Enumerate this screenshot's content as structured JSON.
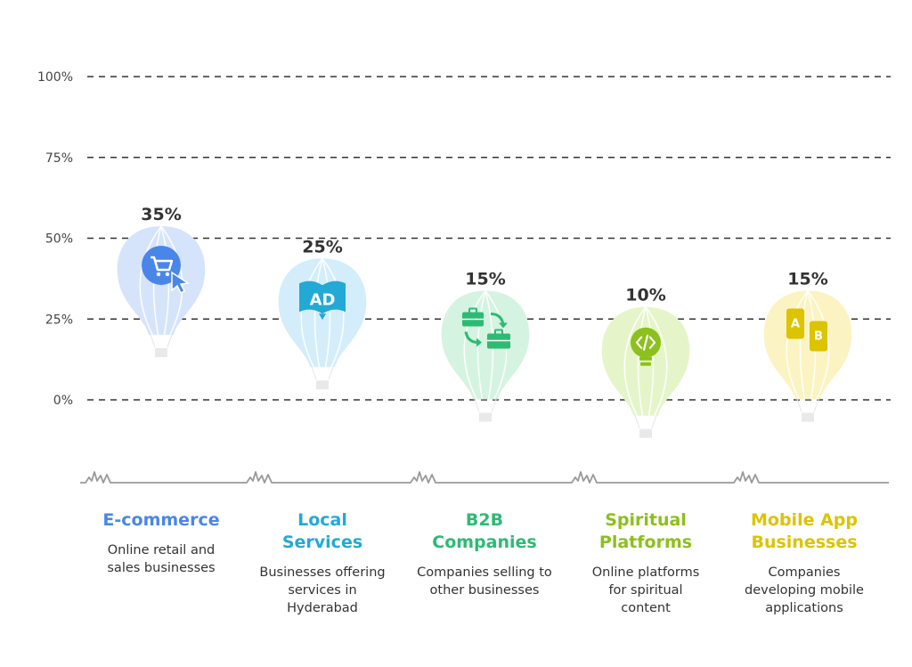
{
  "chart_data": {
    "type": "bar",
    "style": "hot-air-balloons",
    "title": "",
    "xlabel": "",
    "ylabel": "",
    "ylim": [
      0,
      100
    ],
    "grid": true,
    "yticks": [
      {
        "value": 0,
        "label": "0%"
      },
      {
        "value": 25,
        "label": "25%"
      },
      {
        "value": 50,
        "label": "50%"
      },
      {
        "value": 75,
        "label": "75%"
      },
      {
        "value": 100,
        "label": "100%"
      }
    ],
    "categories": [
      "E-commerce",
      "Local Services",
      "B2B Companies",
      "Spiritual Platforms",
      "Mobile App Businesses"
    ],
    "values": [
      35,
      25,
      15,
      10,
      15
    ],
    "value_labels": [
      "35%",
      "25%",
      "15%",
      "10%",
      "15%"
    ]
  },
  "categories": [
    {
      "title": "E-commerce",
      "desc": "Online retail and sales businesses",
      "color": "#4a86e8",
      "fill": "#d6e4fb",
      "icon": "shopping-cart-cursor-icon"
    },
    {
      "title": "Local Services",
      "desc": "Businesses offering services in Hyderabad",
      "color": "#22a9d6",
      "fill": "#d3eefa",
      "icon": "ad-book-icon"
    },
    {
      "title": "B2B Companies",
      "desc": "Companies selling to other businesses",
      "color": "#2dbb73",
      "fill": "#d5f3e1",
      "icon": "briefcase-exchange-icon"
    },
    {
      "title": "Spiritual Platforms",
      "desc": "Online platforms for spiritual content",
      "color": "#8cc01c",
      "fill": "#e6f5c9",
      "icon": "code-lightbulb-icon"
    },
    {
      "title": "Mobile App Businesses",
      "desc": "Companies developing mobile applications",
      "color": "#dcc400",
      "fill": "#fbf4c2",
      "icon": "mobile-ab-icon"
    }
  ]
}
